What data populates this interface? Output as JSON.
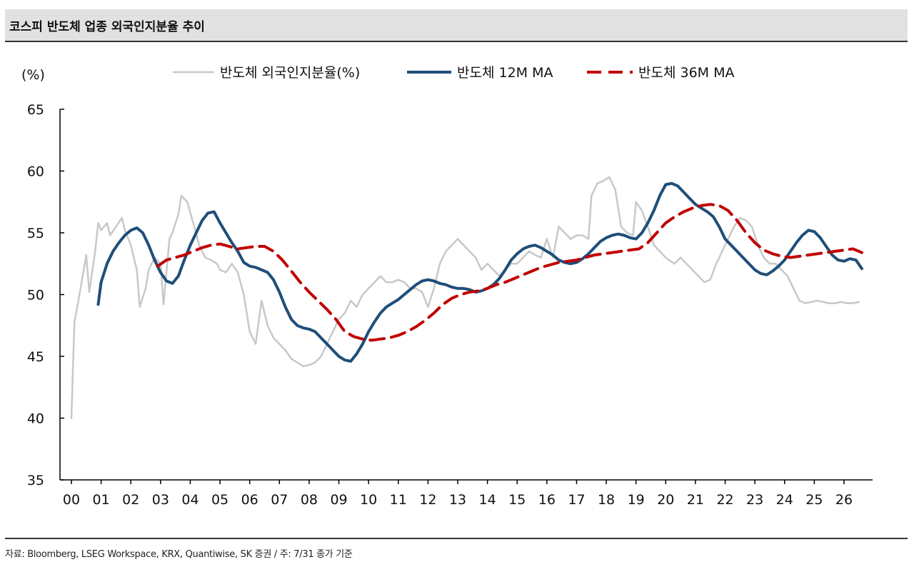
{
  "header": {
    "title": "코스피 반도체 업종 외국인지분율 추이"
  },
  "footer": {
    "source": "자료: Bloomberg, LSEG Workspace, KRX, Quantiwise, SK 증권 / 주: 7/31 종가 기준"
  },
  "chart_data": {
    "type": "line",
    "title": "코스피 반도체 업종 외국인지분율 추이",
    "ylabel": "(%)",
    "xlabel": "",
    "ylim": [
      35,
      65
    ],
    "yticks": [
      35,
      40,
      45,
      50,
      55,
      60,
      65
    ],
    "xlim": [
      2000,
      2027.0
    ],
    "xticks": [
      {
        "x": 2000.0,
        "label": "00"
      },
      {
        "x": 2001.0,
        "label": "01"
      },
      {
        "x": 2002.0,
        "label": "02"
      },
      {
        "x": 2003.0,
        "label": "03"
      },
      {
        "x": 2004.0,
        "label": "04"
      },
      {
        "x": 2005.0,
        "label": "05"
      },
      {
        "x": 2006.0,
        "label": "06"
      },
      {
        "x": 2007.0,
        "label": "07"
      },
      {
        "x": 2008.0,
        "label": "08"
      },
      {
        "x": 2009.0,
        "label": "09"
      },
      {
        "x": 2010.0,
        "label": "10"
      },
      {
        "x": 2011.0,
        "label": "11"
      },
      {
        "x": 2012.0,
        "label": "12"
      },
      {
        "x": 2013.0,
        "label": "13"
      },
      {
        "x": 2014.0,
        "label": "14"
      },
      {
        "x": 2015.0,
        "label": "15"
      },
      {
        "x": 2016.0,
        "label": "16"
      },
      {
        "x": 2017.0,
        "label": "17"
      },
      {
        "x": 2018.0,
        "label": "18"
      },
      {
        "x": 2019.0,
        "label": "19"
      },
      {
        "x": 2020.0,
        "label": "20"
      },
      {
        "x": 2021.0,
        "label": "21"
      },
      {
        "x": 2022.0,
        "label": "22"
      },
      {
        "x": 2023.0,
        "label": "23"
      },
      {
        "x": 2024.0,
        "label": "24"
      },
      {
        "x": 2025.0,
        "label": "25"
      },
      {
        "x": 2026.0,
        "label": "26"
      }
    ],
    "grid": false,
    "legend_position": "top",
    "series": [
      {
        "name": "반도체 외국인지분율(%)",
        "color": "#c8c8c8",
        "style": "solid",
        "width": 2.5,
        "x": [
          2000.0,
          2000.1,
          2000.2,
          2000.4,
          2000.5,
          2000.6,
          2000.8,
          2000.9,
          2001.0,
          2001.2,
          2001.3,
          2001.5,
          2001.7,
          2001.8,
          2002.0,
          2002.2,
          2002.3,
          2002.5,
          2002.6,
          2002.8,
          2003.0,
          2003.1,
          2003.3,
          2003.4,
          2003.6,
          2003.7,
          2003.9,
          2004.1,
          2004.3,
          2004.4,
          2004.5,
          2004.7,
          2004.9,
          2005.0,
          2005.2,
          2005.4,
          2005.6,
          2005.8,
          2006.0,
          2006.2,
          2006.4,
          2006.6,
          2006.8,
          2007.0,
          2007.2,
          2007.4,
          2007.6,
          2007.8,
          2008.0,
          2008.2,
          2008.4,
          2008.6,
          2008.8,
          2009.0,
          2009.2,
          2009.4,
          2009.6,
          2009.8,
          2010.0,
          2010.2,
          2010.4,
          2010.6,
          2010.8,
          2011.0,
          2011.2,
          2011.4,
          2011.6,
          2011.8,
          2012.0,
          2012.2,
          2012.4,
          2012.6,
          2012.8,
          2013.0,
          2013.2,
          2013.4,
          2013.6,
          2013.8,
          2014.0,
          2014.2,
          2014.4,
          2014.6,
          2014.8,
          2015.0,
          2015.2,
          2015.4,
          2015.6,
          2015.8,
          2016.0,
          2016.2,
          2016.4,
          2016.6,
          2016.8,
          2017.0,
          2017.2,
          2017.4,
          2017.5,
          2017.7,
          2017.9,
          2018.1,
          2018.3,
          2018.5,
          2018.7,
          2018.9,
          2019.0,
          2019.2,
          2019.4,
          2019.6,
          2019.8,
          2020.0,
          2020.1,
          2020.3,
          2020.5,
          2020.7,
          2020.9,
          2021.1,
          2021.3,
          2021.5,
          2021.7,
          2021.9,
          2022.1,
          2022.3,
          2022.5,
          2022.7,
          2022.9,
          2023.1,
          2023.3,
          2023.5,
          2023.7,
          2023.9,
          2024.1,
          2024.3,
          2024.5,
          2024.7,
          2024.9,
          2025.1,
          2025.3,
          2025.5,
          2025.7,
          2025.9,
          2026.1,
          2026.3,
          2026.5
        ],
        "y": [
          40.0,
          47.8,
          49.0,
          51.8,
          53.2,
          50.2,
          53.5,
          55.8,
          55.2,
          55.8,
          54.8,
          55.5,
          56.2,
          55.2,
          54.0,
          52.0,
          49.0,
          50.5,
          52.0,
          53.0,
          52.5,
          49.2,
          54.5,
          55.0,
          56.5,
          58.0,
          57.5,
          55.8,
          54.0,
          53.5,
          53.0,
          52.8,
          52.5,
          52.0,
          51.8,
          52.5,
          51.8,
          50.0,
          47.0,
          46.0,
          49.5,
          47.5,
          46.5,
          46.0,
          45.5,
          44.8,
          44.5,
          44.2,
          44.3,
          44.5,
          45.0,
          46.0,
          47.0,
          48.0,
          48.5,
          49.5,
          49.0,
          50.0,
          50.5,
          51.0,
          51.5,
          51.0,
          51.0,
          51.2,
          51.0,
          50.5,
          50.5,
          50.2,
          49.0,
          50.5,
          52.5,
          53.5,
          54.0,
          54.5,
          54.0,
          53.5,
          53.0,
          52.0,
          52.5,
          52.0,
          51.5,
          52.0,
          52.5,
          52.5,
          53.0,
          53.5,
          53.2,
          53.0,
          54.5,
          53.0,
          55.5,
          55.0,
          54.5,
          54.8,
          54.8,
          54.5,
          58.0,
          59.0,
          59.2,
          59.5,
          58.5,
          55.5,
          55.0,
          54.8,
          57.5,
          56.8,
          55.5,
          54.0,
          53.5,
          53.0,
          52.8,
          52.5,
          53.0,
          52.5,
          52.0,
          51.5,
          51.0,
          51.2,
          52.5,
          53.5,
          54.5,
          55.5,
          56.2,
          56.0,
          55.5,
          54.0,
          53.0,
          52.5,
          52.5,
          52.0,
          51.5,
          50.5,
          49.5,
          49.3,
          49.4,
          49.5,
          49.4,
          49.3,
          49.3,
          49.4,
          49.3,
          49.3,
          49.4
        ]
      },
      {
        "name": "반도체 12M MA",
        "color": "#1f4e79",
        "style": "solid",
        "width": 4,
        "x": [
          2000.9,
          2001.0,
          2001.2,
          2001.4,
          2001.6,
          2001.8,
          2002.0,
          2002.2,
          2002.4,
          2002.6,
          2002.8,
          2003.0,
          2003.2,
          2003.4,
          2003.6,
          2003.8,
          2004.0,
          2004.2,
          2004.4,
          2004.6,
          2004.8,
          2005.0,
          2005.2,
          2005.4,
          2005.6,
          2005.8,
          2006.0,
          2006.2,
          2006.4,
          2006.6,
          2006.8,
          2007.0,
          2007.2,
          2007.4,
          2007.6,
          2007.8,
          2008.0,
          2008.2,
          2008.4,
          2008.6,
          2008.8,
          2009.0,
          2009.2,
          2009.4,
          2009.6,
          2009.8,
          2010.0,
          2010.2,
          2010.4,
          2010.6,
          2010.8,
          2011.0,
          2011.2,
          2011.4,
          2011.6,
          2011.8,
          2012.0,
          2012.2,
          2012.4,
          2012.6,
          2012.8,
          2013.0,
          2013.2,
          2013.4,
          2013.6,
          2013.8,
          2014.0,
          2014.2,
          2014.4,
          2014.6,
          2014.8,
          2015.0,
          2015.2,
          2015.4,
          2015.6,
          2015.8,
          2016.0,
          2016.2,
          2016.4,
          2016.6,
          2016.8,
          2017.0,
          2017.2,
          2017.4,
          2017.6,
          2017.8,
          2018.0,
          2018.2,
          2018.4,
          2018.6,
          2018.8,
          2019.0,
          2019.2,
          2019.4,
          2019.6,
          2019.8,
          2020.0,
          2020.2,
          2020.4,
          2020.6,
          2020.8,
          2021.0,
          2021.2,
          2021.4,
          2021.6,
          2021.8,
          2022.0,
          2022.2,
          2022.4,
          2022.6,
          2022.8,
          2023.0,
          2023.2,
          2023.4,
          2023.6,
          2023.8,
          2024.0,
          2024.2,
          2024.4,
          2024.6,
          2024.8,
          2025.0,
          2025.2,
          2025.4,
          2025.6,
          2025.8,
          2026.0,
          2026.2,
          2026.4,
          2026.6
        ],
        "y": [
          49.2,
          51.0,
          52.5,
          53.5,
          54.2,
          54.8,
          55.2,
          55.4,
          55.0,
          54.0,
          52.8,
          51.8,
          51.1,
          50.9,
          51.5,
          52.8,
          54.0,
          55.0,
          56.0,
          56.6,
          56.7,
          55.8,
          55.0,
          54.2,
          53.5,
          52.6,
          52.3,
          52.2,
          52.0,
          51.8,
          51.2,
          50.2,
          49.0,
          48.0,
          47.5,
          47.3,
          47.2,
          47.0,
          46.5,
          46.0,
          45.5,
          45.0,
          44.7,
          44.6,
          45.2,
          46.0,
          47.0,
          47.8,
          48.5,
          49.0,
          49.3,
          49.6,
          50.0,
          50.4,
          50.8,
          51.1,
          51.2,
          51.1,
          50.9,
          50.8,
          50.6,
          50.5,
          50.5,
          50.4,
          50.2,
          50.3,
          50.5,
          50.8,
          51.3,
          52.0,
          52.8,
          53.3,
          53.7,
          53.9,
          54.0,
          53.8,
          53.5,
          53.2,
          52.8,
          52.6,
          52.5,
          52.6,
          52.9,
          53.3,
          53.8,
          54.3,
          54.6,
          54.8,
          54.9,
          54.8,
          54.6,
          54.5,
          55.0,
          55.8,
          56.8,
          58.0,
          58.9,
          59.0,
          58.8,
          58.3,
          57.8,
          57.3,
          57.0,
          56.7,
          56.3,
          55.5,
          54.5,
          54.0,
          53.5,
          53.0,
          52.5,
          52.0,
          51.7,
          51.6,
          51.9,
          52.3,
          52.8,
          53.5,
          54.2,
          54.8,
          55.2,
          55.1,
          54.6,
          53.9,
          53.2,
          52.8,
          52.7,
          52.9,
          52.8,
          52.1
        ]
      },
      {
        "name": "반도체 36M MA",
        "color": "#c00000",
        "style": "dashed",
        "width": 4,
        "x": [
          2002.9,
          2003.2,
          2003.5,
          2003.8,
          2004.1,
          2004.4,
          2004.7,
          2005.0,
          2005.3,
          2005.6,
          2005.9,
          2006.2,
          2006.5,
          2006.8,
          2007.1,
          2007.4,
          2007.7,
          2008.0,
          2008.3,
          2008.6,
          2008.9,
          2009.2,
          2009.5,
          2009.8,
          2010.1,
          2010.4,
          2010.7,
          2011.0,
          2011.3,
          2011.6,
          2011.9,
          2012.2,
          2012.5,
          2012.8,
          2013.1,
          2013.4,
          2013.7,
          2014.0,
          2014.3,
          2014.6,
          2014.9,
          2015.2,
          2015.5,
          2015.8,
          2016.1,
          2016.4,
          2016.7,
          2017.0,
          2017.3,
          2017.6,
          2017.9,
          2018.2,
          2018.5,
          2018.8,
          2019.1,
          2019.4,
          2019.7,
          2020.0,
          2020.3,
          2020.6,
          2020.9,
          2021.2,
          2021.5,
          2021.8,
          2022.1,
          2022.4,
          2022.7,
          2023.0,
          2023.3,
          2023.6,
          2023.9,
          2024.2,
          2024.5,
          2024.8,
          2025.1,
          2025.4,
          2025.7,
          2026.0,
          2026.3,
          2026.6
        ],
        "y": [
          52.3,
          52.8,
          53.0,
          53.2,
          53.5,
          53.8,
          54.0,
          54.1,
          53.9,
          53.7,
          53.8,
          53.9,
          53.9,
          53.5,
          52.8,
          51.9,
          51.0,
          50.2,
          49.5,
          48.8,
          48.0,
          47.0,
          46.6,
          46.4,
          46.3,
          46.4,
          46.5,
          46.7,
          47.0,
          47.4,
          47.9,
          48.5,
          49.2,
          49.7,
          50.0,
          50.2,
          50.3,
          50.5,
          50.8,
          51.0,
          51.3,
          51.6,
          51.9,
          52.2,
          52.4,
          52.6,
          52.7,
          52.8,
          53.0,
          53.2,
          53.3,
          53.4,
          53.5,
          53.6,
          53.7,
          54.2,
          55.0,
          55.8,
          56.3,
          56.7,
          57.0,
          57.2,
          57.3,
          57.2,
          56.8,
          56.0,
          55.0,
          54.2,
          53.6,
          53.3,
          53.1,
          53.0,
          53.1,
          53.2,
          53.3,
          53.4,
          53.5,
          53.6,
          53.7,
          53.4
        ]
      }
    ]
  }
}
